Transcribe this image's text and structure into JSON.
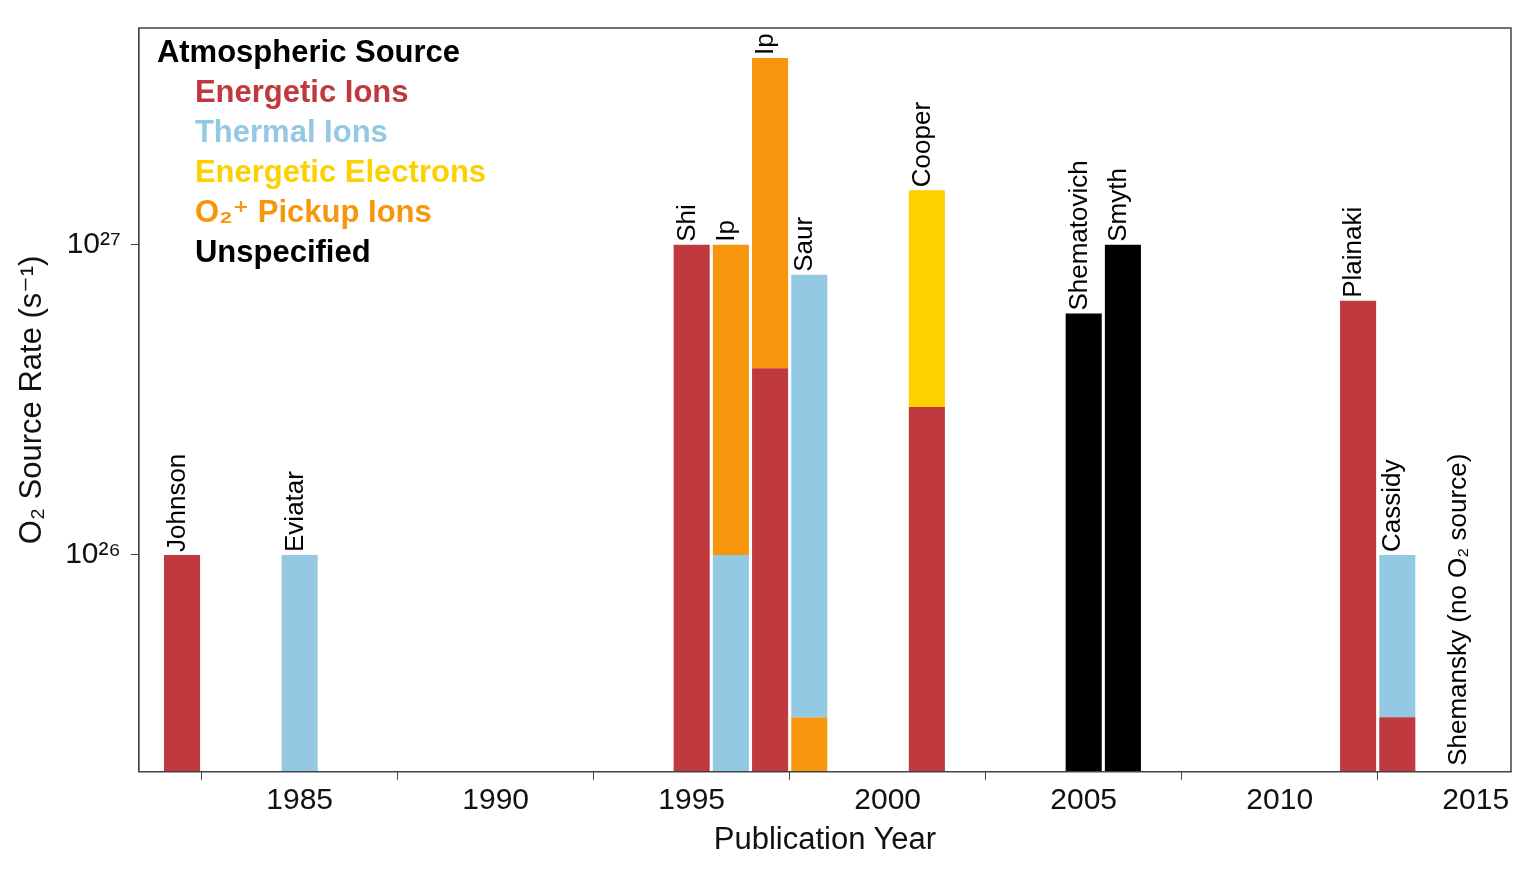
{
  "chart_data": {
    "type": "bar",
    "xlabel": "Publication Year",
    "ylabel": "O₂ Source Rate (s⁻¹)",
    "legend_title": "Atmospheric Source",
    "legend": "top left",
    "log": true,
    "grid": false,
    "x": [
      1982,
      1985,
      1995,
      1996,
      1997,
      1998,
      2001,
      2005,
      2006,
      2012,
      2013
    ],
    "xlim": [
      1980.9,
      2015.9
    ],
    "xticks": [
      1985,
      1990,
      1995,
      2000,
      2005,
      2010,
      2015
    ],
    "ylim": [
      2e+25,
      5e+27
    ],
    "yticks": [
      {
        "value": 1e+26,
        "label": "10²⁶"
      },
      {
        "value": 1e+27,
        "label": "10²⁷"
      }
    ],
    "series": [
      {
        "name": "Energetic Ions",
        "color": "#c0393f",
        "values": [
          1e+26,
          null,
          1e+27,
          null,
          4e+26,
          null,
          3e+26,
          null,
          null,
          6.6e+26,
          3e+25
        ]
      },
      {
        "name": "Thermal Ions",
        "color": "#93c9e3",
        "values": [
          null,
          1e+26,
          null,
          1e+26,
          null,
          7.7e+26,
          null,
          null,
          null,
          null,
          7e+25
        ],
        "base": [
          null,
          null,
          null,
          null,
          null,
          3e+25,
          null,
          null,
          null,
          null,
          3e+25
        ]
      },
      {
        "name": "Energetic Electrons",
        "color": "#fdd000",
        "values": [
          null,
          null,
          null,
          null,
          null,
          null,
          1.2e+27,
          null,
          null,
          null,
          null
        ],
        "base": [
          null,
          null,
          null,
          null,
          null,
          null,
          3e+26,
          null,
          null,
          null,
          null
        ]
      },
      {
        "name": "O₂⁺ Pickup Ions",
        "color": "#f7960d",
        "values": [
          null,
          null,
          null,
          9e+26,
          3.6e+27,
          3e+25,
          null,
          null,
          null,
          null,
          null
        ],
        "base": [
          null,
          null,
          null,
          1e+26,
          4e+26,
          null,
          null,
          null,
          null,
          null,
          null
        ]
      },
      {
        "name": "Unspecified",
        "color": "#000000",
        "values": [
          null,
          null,
          null,
          null,
          null,
          null,
          null,
          6e+26,
          1e+27,
          null,
          null
        ]
      }
    ],
    "annotations": [
      {
        "text": "Johnson",
        "x": 1982,
        "y": 1e+26
      },
      {
        "text": "Eviatar",
        "x": 1985,
        "y": 1e+26
      },
      {
        "text": "Shi",
        "x": 1995,
        "y": 1e+27
      },
      {
        "text": "Ip",
        "x": 1996,
        "y": 1e+27
      },
      {
        "text": "Ip",
        "x": 1997,
        "y": 4e+27
      },
      {
        "text": "Saur",
        "x": 1998,
        "y": 8e+26
      },
      {
        "text": "Cooper",
        "x": 2001,
        "y": 1.5e+27
      },
      {
        "text": "Shematovich",
        "x": 2005,
        "y": 6e+26
      },
      {
        "text": "Smyth",
        "x": 2006,
        "y": 1e+27
      },
      {
        "text": "Plainaki",
        "x": 2012,
        "y": 6.6e+26
      },
      {
        "text": "Cassidy",
        "x": 2013,
        "y": 1e+26
      },
      "Shemansky (no O₂ source)"
    ]
  }
}
